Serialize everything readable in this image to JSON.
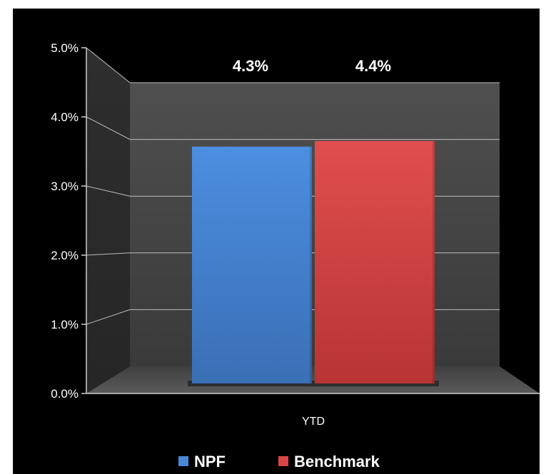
{
  "chart_data": {
    "type": "bar",
    "categories": [
      "YTD"
    ],
    "series": [
      {
        "name": "NPF",
        "values": [
          4.3
        ],
        "label": "4.3%",
        "color": "#4a86d8"
      },
      {
        "name": "Benchmark",
        "values": [
          4.4
        ],
        "label": "4.4%",
        "color": "#d94545"
      }
    ],
    "ylim": [
      0,
      5
    ],
    "yticks": [
      "0.0%",
      "1.0%",
      "2.0%",
      "3.0%",
      "4.0%",
      "5.0%"
    ],
    "grid": true,
    "style": "3d",
    "background": "#000000",
    "legend_position": "bottom"
  }
}
